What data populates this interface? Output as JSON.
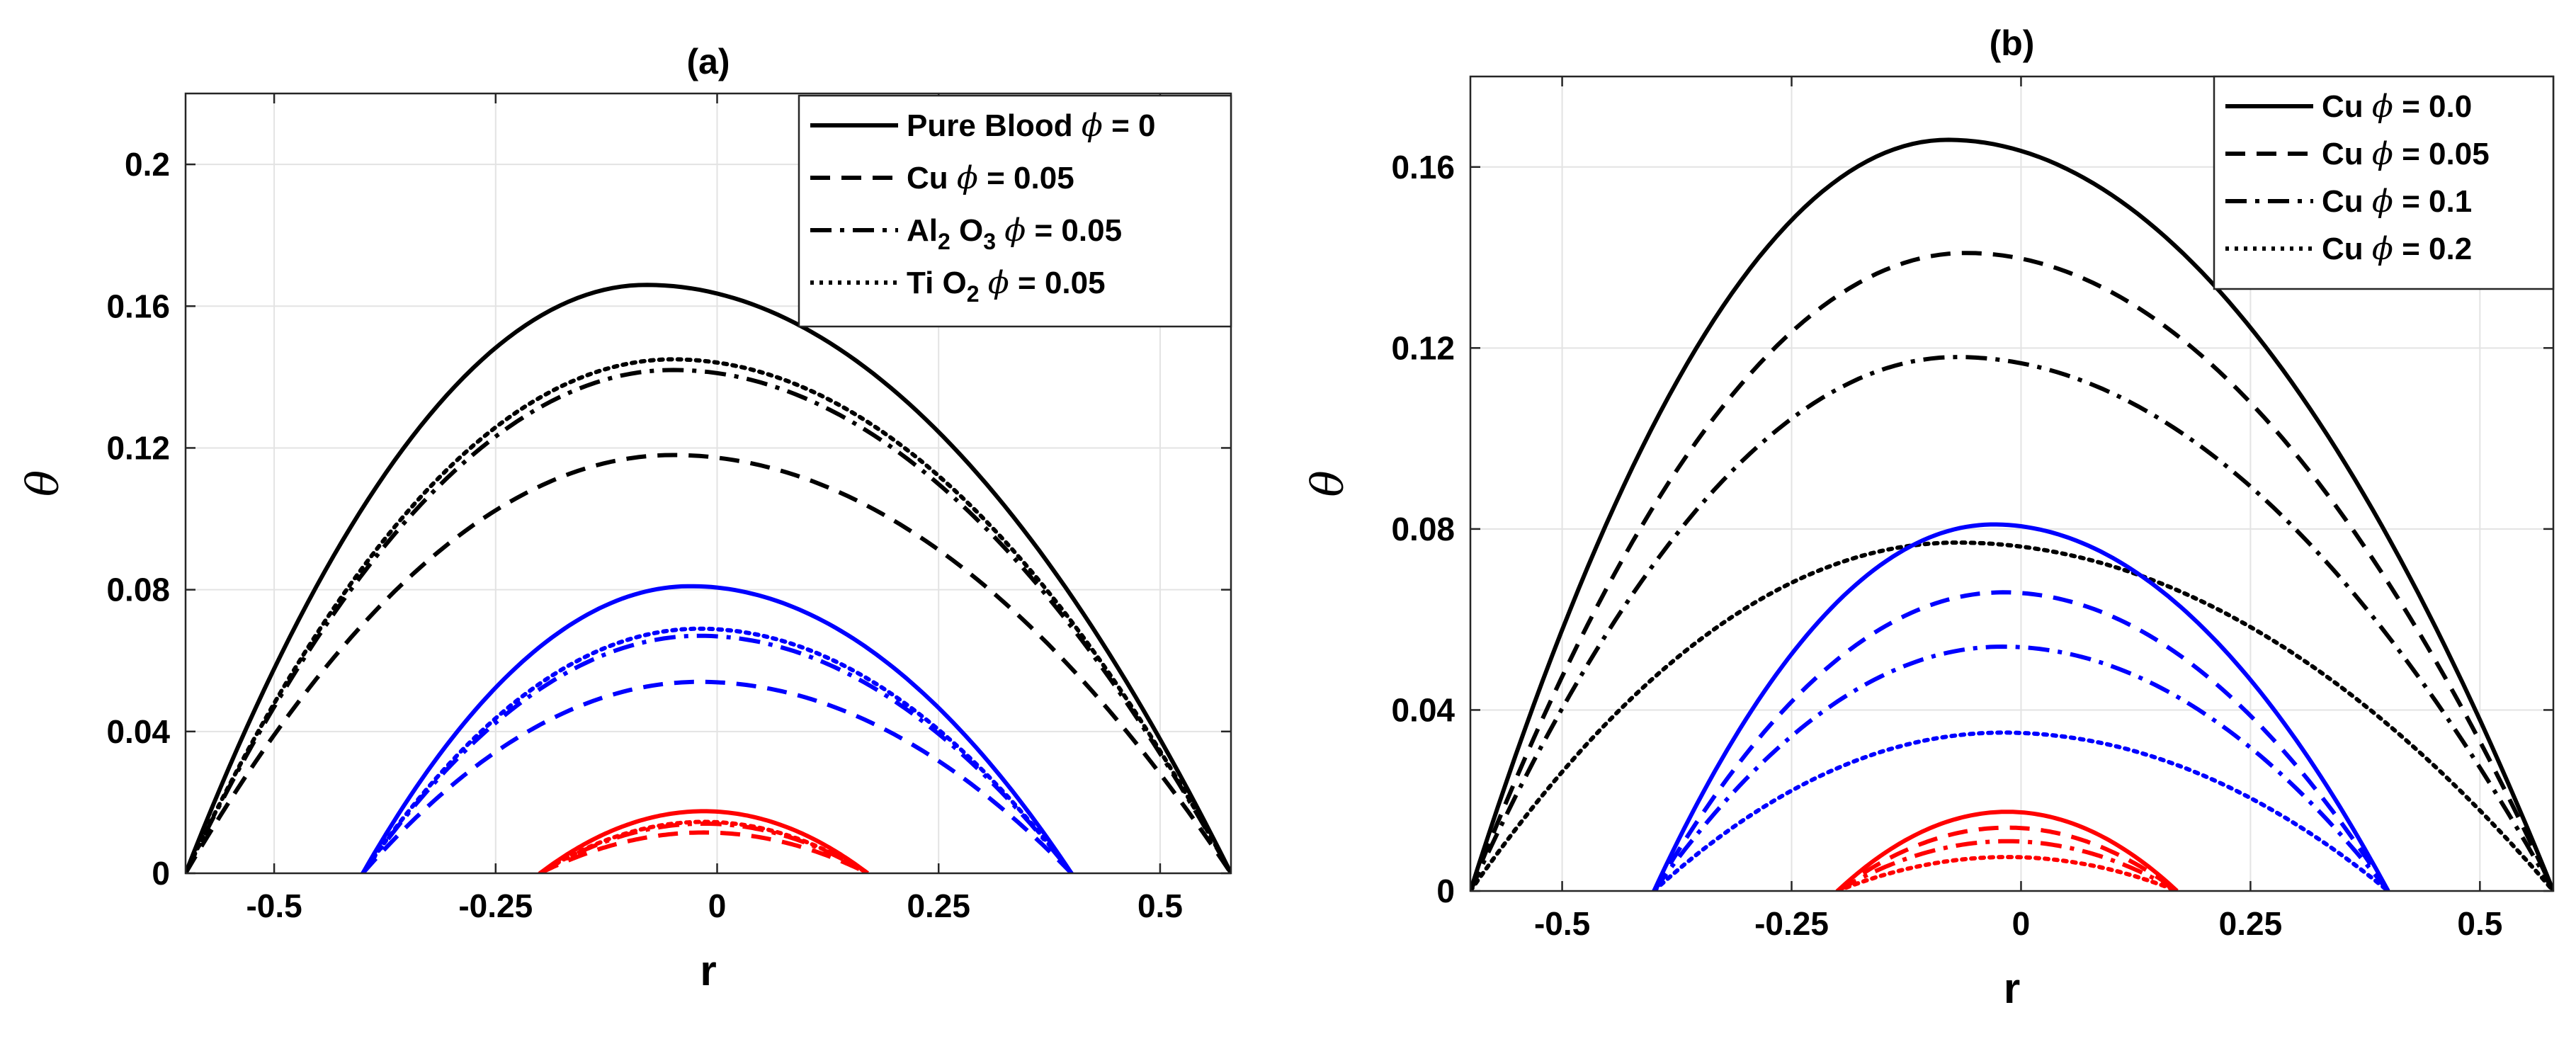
{
  "chart_data": [
    {
      "panel": "a",
      "type": "line",
      "title": "(a)",
      "xlabel": "r",
      "ylabel": "θ",
      "xlim": [
        -0.6,
        0.58
      ],
      "ylim": [
        0,
        0.22
      ],
      "grid": true,
      "xticks": [
        -0.5,
        -0.25,
        0,
        0.25,
        0.5
      ],
      "xtick_labels": [
        "-0.5",
        "-0.25",
        "0",
        "0.25",
        "0.5"
      ],
      "yticks": [
        0,
        0.04,
        0.08,
        0.12,
        0.16,
        0.2
      ],
      "ytick_labels": [
        "0",
        "0.04",
        "0.08",
        "0.12",
        "0.16",
        "0.2"
      ],
      "legend": {
        "placement": "top-right",
        "entries": [
          {
            "base": "Pure Blood ",
            "sub": "",
            "mid": "",
            "sub2": "",
            "tail": " = 0",
            "style": "solid"
          },
          {
            "base": "Cu ",
            "sub": "",
            "mid": "",
            "sub2": "",
            "tail": " = 0.05",
            "style": "dashed"
          },
          {
            "base": "Al",
            "sub": "2",
            "mid": " O",
            "sub2": "3",
            "tail": " = 0.05",
            "style": "dashdot"
          },
          {
            "base": "Ti O",
            "sub": "2",
            "mid": "",
            "sub2": "",
            "tail": " = 0.05",
            "style": "dotted"
          }
        ]
      },
      "series": [
        {
          "name": "Pure Blood φ = 0",
          "group": "outer",
          "color": "#000000",
          "style": "solid",
          "x0": -0.6,
          "x1": 0.58,
          "peak_x": -0.08,
          "peak": 0.166
        },
        {
          "name": "Cu φ = 0.05",
          "group": "outer",
          "color": "#000000",
          "style": "dashed",
          "x0": -0.6,
          "x1": 0.58,
          "peak_x": -0.05,
          "peak": 0.118
        },
        {
          "name": "Al2 O3 φ = 0.05",
          "group": "outer",
          "color": "#000000",
          "style": "dashdot",
          "x0": -0.6,
          "x1": 0.58,
          "peak_x": -0.05,
          "peak": 0.142
        },
        {
          "name": "Ti O2 φ = 0.05",
          "group": "outer",
          "color": "#000000",
          "style": "dotted",
          "x0": -0.6,
          "x1": 0.58,
          "peak_x": -0.05,
          "peak": 0.145
        },
        {
          "name": "Pure Blood φ = 0",
          "group": "middle",
          "color": "#0000ff",
          "style": "solid",
          "x0": -0.4,
          "x1": 0.4,
          "peak_x": -0.03,
          "peak": 0.081
        },
        {
          "name": "Cu φ = 0.05",
          "group": "middle",
          "color": "#0000ff",
          "style": "dashed",
          "x0": -0.4,
          "x1": 0.4,
          "peak_x": -0.02,
          "peak": 0.054
        },
        {
          "name": "Al2 O3 φ = 0.05",
          "group": "middle",
          "color": "#0000ff",
          "style": "dashdot",
          "x0": -0.4,
          "x1": 0.4,
          "peak_x": -0.02,
          "peak": 0.067
        },
        {
          "name": "Ti O2 φ = 0.05",
          "group": "middle",
          "color": "#0000ff",
          "style": "dotted",
          "x0": -0.4,
          "x1": 0.4,
          "peak_x": -0.02,
          "peak": 0.069
        },
        {
          "name": "Pure Blood φ = 0",
          "group": "inner",
          "color": "#ff0000",
          "style": "solid",
          "x0": -0.2,
          "x1": 0.17,
          "peak_x": -0.015,
          "peak": 0.0175
        },
        {
          "name": "Cu φ = 0.05",
          "group": "inner",
          "color": "#ff0000",
          "style": "dashed",
          "x0": -0.2,
          "x1": 0.17,
          "peak_x": -0.015,
          "peak": 0.0115
        },
        {
          "name": "Al2 O3 φ = 0.05",
          "group": "inner",
          "color": "#ff0000",
          "style": "dashdot",
          "x0": -0.2,
          "x1": 0.17,
          "peak_x": -0.015,
          "peak": 0.014
        },
        {
          "name": "Ti O2 φ = 0.05",
          "group": "inner",
          "color": "#ff0000",
          "style": "dotted",
          "x0": -0.2,
          "x1": 0.17,
          "peak_x": -0.015,
          "peak": 0.0145
        }
      ]
    },
    {
      "panel": "b",
      "type": "line",
      "title": "(b)",
      "xlabel": "r",
      "ylabel": "θ",
      "xlim": [
        -0.6,
        0.58
      ],
      "ylim": [
        0,
        0.18
      ],
      "grid": true,
      "xticks": [
        -0.5,
        -0.25,
        0,
        0.25,
        0.5
      ],
      "xtick_labels": [
        "-0.5",
        "-0.25",
        "0",
        "0.25",
        "0.5"
      ],
      "yticks": [
        0,
        0.04,
        0.08,
        0.12,
        0.16
      ],
      "ytick_labels": [
        "0",
        "0.04",
        "0.08",
        "0.12",
        "0.16"
      ],
      "legend": {
        "placement": "top-right",
        "entries": [
          {
            "base": "Cu ",
            "sub": "",
            "mid": "",
            "sub2": "",
            "tail": " = 0.0",
            "style": "solid"
          },
          {
            "base": "Cu ",
            "sub": "",
            "mid": "",
            "sub2": "",
            "tail": " = 0.05",
            "style": "dashed"
          },
          {
            "base": "Cu ",
            "sub": "",
            "mid": "",
            "sub2": "",
            "tail": " = 0.1",
            "style": "dashdot"
          },
          {
            "base": "Cu ",
            "sub": "",
            "mid": "",
            "sub2": "",
            "tail": " = 0.2",
            "style": "dotted"
          }
        ]
      },
      "series": [
        {
          "name": "Cu φ = 0.0",
          "group": "outer",
          "color": "#000000",
          "style": "solid",
          "x0": -0.6,
          "x1": 0.58,
          "peak_x": -0.08,
          "peak": 0.166
        },
        {
          "name": "Cu φ = 0.05",
          "group": "outer",
          "color": "#000000",
          "style": "dashed",
          "x0": -0.6,
          "x1": 0.58,
          "peak_x": -0.06,
          "peak": 0.141
        },
        {
          "name": "Cu φ = 0.1",
          "group": "outer",
          "color": "#000000",
          "style": "dashdot",
          "x0": -0.6,
          "x1": 0.58,
          "peak_x": -0.07,
          "peak": 0.118
        },
        {
          "name": "Cu φ = 0.2",
          "group": "outer",
          "color": "#000000",
          "style": "dotted",
          "x0": -0.6,
          "x1": 0.58,
          "peak_x": -0.07,
          "peak": 0.077
        },
        {
          "name": "Cu φ = 0.0",
          "group": "middle",
          "color": "#0000ff",
          "style": "solid",
          "x0": -0.4,
          "x1": 0.4,
          "peak_x": -0.03,
          "peak": 0.081
        },
        {
          "name": "Cu φ = 0.05",
          "group": "middle",
          "color": "#0000ff",
          "style": "dashed",
          "x0": -0.4,
          "x1": 0.4,
          "peak_x": -0.02,
          "peak": 0.066
        },
        {
          "name": "Cu φ = 0.1",
          "group": "middle",
          "color": "#0000ff",
          "style": "dashdot",
          "x0": -0.4,
          "x1": 0.4,
          "peak_x": -0.02,
          "peak": 0.054
        },
        {
          "name": "Cu φ = 0.2",
          "group": "middle",
          "color": "#0000ff",
          "style": "dotted",
          "x0": -0.4,
          "x1": 0.4,
          "peak_x": -0.02,
          "peak": 0.035
        },
        {
          "name": "Cu φ = 0.0",
          "group": "inner",
          "color": "#ff0000",
          "style": "solid",
          "x0": -0.2,
          "x1": 0.17,
          "peak_x": -0.015,
          "peak": 0.0175
        },
        {
          "name": "Cu φ = 0.05",
          "group": "inner",
          "color": "#ff0000",
          "style": "dashed",
          "x0": -0.2,
          "x1": 0.17,
          "peak_x": -0.015,
          "peak": 0.014
        },
        {
          "name": "Cu φ = 0.1",
          "group": "inner",
          "color": "#ff0000",
          "style": "dashdot",
          "x0": -0.2,
          "x1": 0.17,
          "peak_x": -0.015,
          "peak": 0.011
        },
        {
          "name": "Cu φ = 0.2",
          "group": "inner",
          "color": "#ff0000",
          "style": "dotted",
          "x0": -0.2,
          "x1": 0.17,
          "peak_x": -0.015,
          "peak": 0.0075
        }
      ]
    }
  ],
  "legend_symbol": "ϕ"
}
